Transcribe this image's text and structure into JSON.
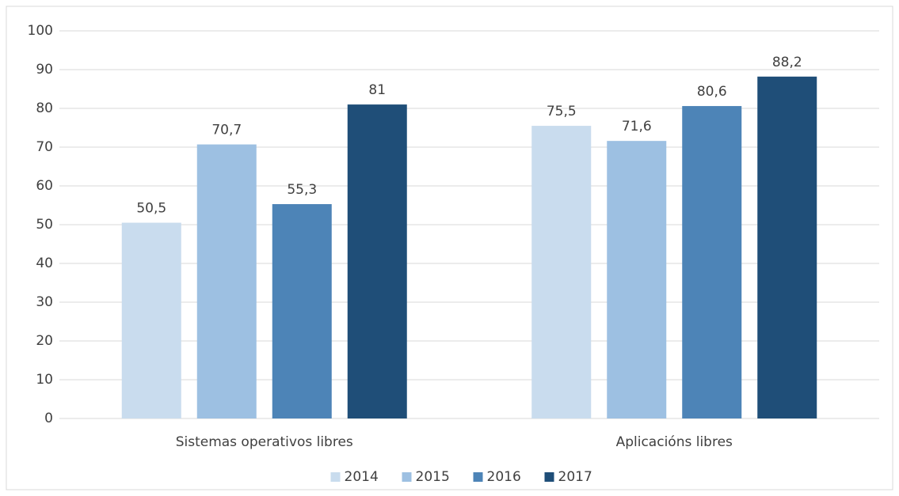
{
  "chart_data": {
    "type": "bar",
    "categories": [
      "Sistemas operativos libres",
      "Aplicacións libres"
    ],
    "series": [
      {
        "name": "2014",
        "color": "#c9dcee",
        "values": [
          50.5,
          75.5
        ],
        "value_labels": [
          "50,5",
          "75,5"
        ]
      },
      {
        "name": "2015",
        "color": "#9dc0e2",
        "values": [
          70.7,
          71.6
        ],
        "value_labels": [
          "70,7",
          "71,6"
        ]
      },
      {
        "name": "2016",
        "color": "#4d84b7",
        "values": [
          55.3,
          80.6
        ],
        "value_labels": [
          "55,3",
          "80,6"
        ]
      },
      {
        "name": "2017",
        "color": "#1f4e78",
        "values": [
          81,
          88.2
        ],
        "value_labels": [
          "81",
          "88,2"
        ]
      }
    ],
    "ylim": [
      0,
      100
    ],
    "yticks": [
      0,
      10,
      20,
      30,
      40,
      50,
      60,
      70,
      80,
      90,
      100
    ],
    "grid": true,
    "legend": "bottom"
  }
}
